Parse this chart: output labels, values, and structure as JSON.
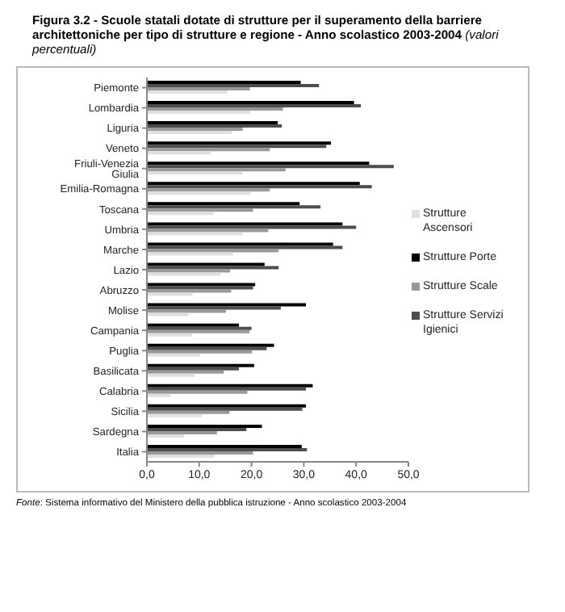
{
  "chart_data": {
    "type": "bar",
    "orientation": "horizontal",
    "title": "Figura 3.2 - Scuole statali dotate di strutture per il superamento della barriere architettoniche per tipo di strutture e regione - Anno scolastico 2003-2004",
    "subtitle": "(valori percentuali)",
    "annotations": [
      "Fonte: Sistema informativo del Ministero della pubblica istruzione - Anno scolastico 2003-2004"
    ],
    "categories": [
      "Piemonte",
      "Lombardia",
      "Liguria",
      "Veneto",
      "Friuli-Venezia Giulia",
      "Emilia-Romagna",
      "Toscana",
      "Umbria",
      "Marche",
      "Lazio",
      "Abruzzo",
      "Molise",
      "Campania",
      "Puglia",
      "Basilicata",
      "Calabria",
      "Sicilia",
      "Sardegna",
      "Italia"
    ],
    "series": [
      {
        "name": "Strutture Porte",
        "color": "#000000",
        "values": [
          29.4,
          39.6,
          25.0,
          35.2,
          42.5,
          40.7,
          29.2,
          37.4,
          35.6,
          22.5,
          20.7,
          30.4,
          17.6,
          24.3,
          20.5,
          31.7,
          30.4,
          22.0,
          29.6
        ]
      },
      {
        "name": "Strutture Servizi Igienici",
        "color": "#4d4d4d",
        "values": [
          32.9,
          40.9,
          25.8,
          34.3,
          47.2,
          43.0,
          33.2,
          40.0,
          37.4,
          25.2,
          20.3,
          25.6,
          20.0,
          22.9,
          17.6,
          30.4,
          29.7,
          19.0,
          30.6
        ]
      },
      {
        "name": "Strutture Scale",
        "color": "#999999",
        "values": [
          19.7,
          26.0,
          18.3,
          23.5,
          26.5,
          23.5,
          20.3,
          23.2,
          25.2,
          15.9,
          16.1,
          15.1,
          19.6,
          20.1,
          14.7,
          19.2,
          15.8,
          13.4,
          20.3
        ]
      },
      {
        "name": "Strutture Ascensori",
        "color": "#e0e0e0",
        "values": [
          15.4,
          19.7,
          16.3,
          12.2,
          18.3,
          19.8,
          12.7,
          18.3,
          16.5,
          14.1,
          8.7,
          7.9,
          8.6,
          10.2,
          9.1,
          4.5,
          10.5,
          7.1,
          12.9
        ]
      }
    ],
    "xlim": [
      0,
      50
    ],
    "xticks": [
      {
        "value": 0,
        "label": "0,0"
      },
      {
        "value": 10,
        "label": "10,0"
      },
      {
        "value": 20,
        "label": "20,0"
      },
      {
        "value": 30,
        "label": "30,0"
      },
      {
        "value": 40,
        "label": "40,0"
      },
      {
        "value": 50,
        "label": "50,0"
      }
    ],
    "legend": "right",
    "grid": false
  }
}
